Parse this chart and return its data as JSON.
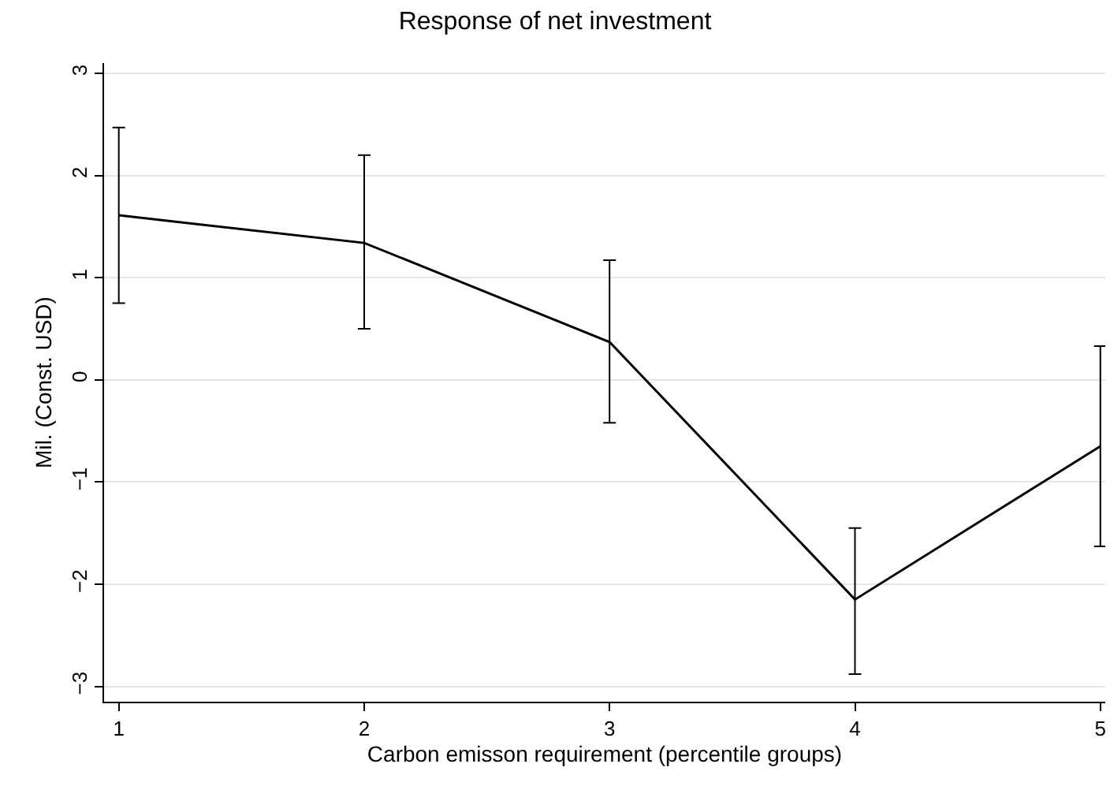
{
  "chart_data": {
    "type": "line",
    "title": "Response of net investment",
    "xlabel": "Carbon emisson requirement (percentile groups)",
    "ylabel": "Mil. (Const. USD)",
    "x": [
      1,
      2,
      3,
      4,
      5
    ],
    "series": [
      {
        "color": "#000000",
        "values": [
          1.61,
          1.34,
          0.37,
          -2.15,
          -0.65
        ],
        "errors": [
          [
            0.75,
            2.47
          ],
          [
            0.5,
            2.2
          ],
          [
            -0.42,
            1.17
          ],
          [
            -2.88,
            -1.45
          ],
          [
            -1.63,
            0.33
          ]
        ]
      }
    ],
    "xlim": [
      0.94,
      5.02
    ],
    "xticks": [
      1,
      2,
      3,
      4,
      5
    ],
    "ylim": [
      -3.15,
      3.1
    ],
    "yticks": [
      {
        "value": -3,
        "label": "−3"
      },
      {
        "value": -2,
        "label": "−2"
      },
      {
        "value": -1,
        "label": "−1"
      },
      0,
      1,
      2,
      3
    ],
    "grid": "y",
    "marker": "none",
    "line_style": "solid"
  }
}
